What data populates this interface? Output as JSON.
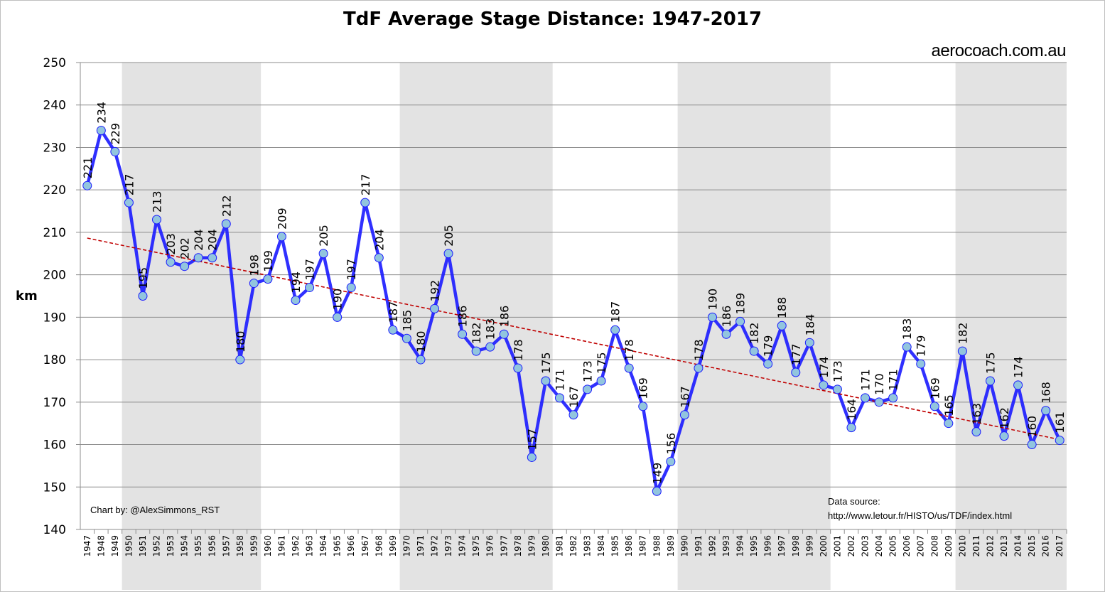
{
  "chart_data": {
    "type": "line",
    "title": "TdF Average Stage Distance: 1947-2017",
    "ylabel": "km",
    "xlabel": "",
    "ylim": [
      140,
      250
    ],
    "yticks": [
      140,
      150,
      160,
      170,
      180,
      190,
      200,
      210,
      220,
      230,
      240,
      250
    ],
    "grid": true,
    "x": [
      1947,
      1948,
      1949,
      1950,
      1951,
      1952,
      1953,
      1954,
      1955,
      1956,
      1957,
      1958,
      1959,
      1960,
      1961,
      1962,
      1963,
      1964,
      1965,
      1966,
      1967,
      1968,
      1969,
      1970,
      1971,
      1972,
      1973,
      1974,
      1975,
      1976,
      1977,
      1978,
      1979,
      1980,
      1981,
      1982,
      1983,
      1984,
      1985,
      1986,
      1987,
      1988,
      1989,
      1990,
      1991,
      1992,
      1993,
      1994,
      1995,
      1996,
      1997,
      1998,
      1999,
      2000,
      2001,
      2002,
      2003,
      2004,
      2005,
      2006,
      2007,
      2008,
      2009,
      2010,
      2011,
      2012,
      2013,
      2014,
      2015,
      2016,
      2017
    ],
    "values": [
      221,
      234,
      229,
      217,
      195,
      213,
      203,
      202,
      204,
      204,
      212,
      180,
      198,
      199,
      209,
      194,
      197,
      205,
      190,
      197,
      217,
      204,
      187,
      185,
      180,
      192,
      205,
      186,
      182,
      183,
      186,
      178,
      157,
      175,
      171,
      167,
      173,
      175,
      187,
      178,
      169,
      149,
      156,
      167,
      178,
      190,
      186,
      189,
      182,
      179,
      188,
      177,
      184,
      174,
      173,
      164,
      171,
      170,
      171,
      183,
      179,
      169,
      165,
      182,
      163,
      175,
      162,
      174,
      160,
      168,
      161
    ],
    "trendline": "linear",
    "shaded_decades": [
      [
        1950,
        1959
      ],
      [
        1970,
        1980
      ],
      [
        1990,
        2000
      ],
      [
        2010,
        2017
      ]
    ],
    "colors": {
      "line": "#1a1aff",
      "marker": "#92c5de",
      "trend": "#c00000",
      "band": "#e3e3e3",
      "grid": "#8c8c8c"
    }
  },
  "brand": "aerocoach.com.au",
  "credit": "Chart by: @AlexSimmons_RST",
  "source_label": "Data source:",
  "source_url": "http://www.letour.fr/HISTO/us/TDF/index.html"
}
